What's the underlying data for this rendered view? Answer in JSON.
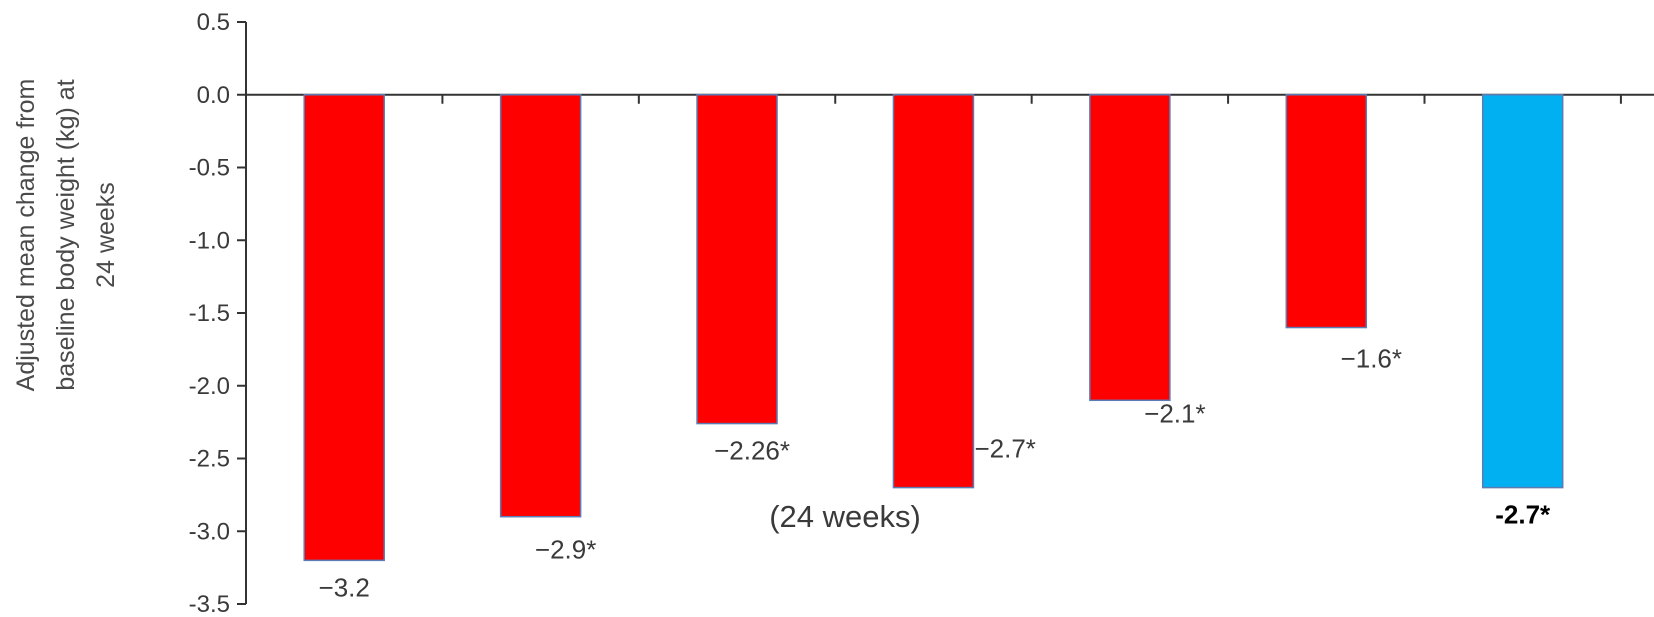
{
  "chart_data": {
    "type": "bar",
    "title": "",
    "xlabel": "",
    "ylabel_lines": [
      "Adjusted mean change from",
      "baseline body weight (kg) at",
      "24 weeks"
    ],
    "ylim": [
      -3.5,
      0.5
    ],
    "yticks": [
      "0.5",
      "0.0",
      "-0.5",
      "-1.0",
      "-1.5",
      "-2.0",
      "-2.5",
      "-3.0",
      "-3.5"
    ],
    "ytick_values": [
      0.5,
      0.0,
      -0.5,
      -1.0,
      -1.5,
      -2.0,
      -2.5,
      -3.0,
      -3.5
    ],
    "grid": false,
    "annotation": "(24 weeks)",
    "values": [
      -3.2,
      -2.9,
      -2.26,
      -2.7,
      -2.1,
      -1.6,
      -2.7
    ],
    "labels": [
      "−3.2",
      "−2.9*",
      "−2.26*",
      "−2.7*",
      "−2.1*",
      "−1.6*",
      "-2.7*"
    ],
    "colors": [
      "#ff0000",
      "#ff0000",
      "#ff0000",
      "#ff0000",
      "#ff0000",
      "#ff0000",
      "#00b0f0"
    ]
  }
}
